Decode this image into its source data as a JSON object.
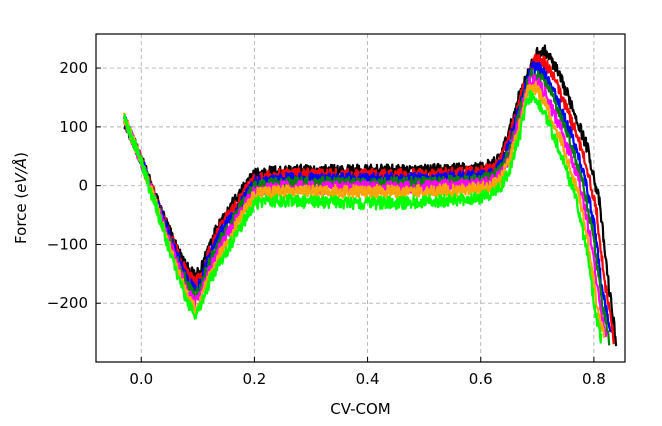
{
  "chart_data": {
    "type": "line",
    "xlabel": "CV-COM",
    "ylabel_prefix": "Force (",
    "ylabel_unit": "eV/Å",
    "ylabel_suffix": ")",
    "xlim": [
      -0.08,
      0.855
    ],
    "ylim": [
      -300,
      258
    ],
    "xticks": [
      0.0,
      0.2,
      0.4,
      0.6,
      0.8
    ],
    "xtick_labels": [
      "0.0",
      "0.2",
      "0.4",
      "0.6",
      "0.8"
    ],
    "yticks": [
      -200,
      -100,
      0,
      100,
      200
    ],
    "ytick_labels": [
      "−200",
      "−100",
      "0",
      "100",
      "200"
    ],
    "grid": true,
    "legend": "none",
    "noise_note": "curves are visibly noisy",
    "series": [
      {
        "color": "#000000",
        "x": [
          -0.03,
          0.0,
          0.03,
          0.06,
          0.08,
          0.095,
          0.105,
          0.12,
          0.14,
          0.17,
          0.2,
          0.25,
          0.3,
          0.4,
          0.5,
          0.6,
          0.62,
          0.635,
          0.65,
          0.67,
          0.7,
          0.715,
          0.73,
          0.76,
          0.79,
          0.81,
          0.825,
          0.84
        ],
        "y": [
          110,
          45,
          -30,
          -100,
          -140,
          -155,
          -145,
          -100,
          -60,
          -20,
          20,
          25,
          25,
          25,
          25,
          30,
          35,
          50,
          90,
          160,
          225,
          228,
          205,
          140,
          60,
          -30,
          -160,
          -270
        ]
      },
      {
        "color": "#ff0000",
        "x": [
          -0.03,
          0.0,
          0.03,
          0.06,
          0.08,
          0.095,
          0.105,
          0.12,
          0.14,
          0.17,
          0.2,
          0.25,
          0.3,
          0.4,
          0.5,
          0.6,
          0.62,
          0.635,
          0.65,
          0.67,
          0.695,
          0.71,
          0.725,
          0.755,
          0.785,
          0.805,
          0.82,
          0.835
        ],
        "y": [
          111,
          44,
          -33,
          -106,
          -149,
          -166,
          -155,
          -111,
          -71,
          -29,
          13,
          18,
          18,
          18,
          18,
          23,
          28,
          42,
          80,
          149,
          212,
          214,
          191,
          126,
          44,
          -47,
          -170,
          -260
        ]
      },
      {
        "color": "#0000ff",
        "x": [
          -0.03,
          0.0,
          0.03,
          0.06,
          0.08,
          0.095,
          0.105,
          0.12,
          0.14,
          0.17,
          0.2,
          0.25,
          0.3,
          0.4,
          0.5,
          0.6,
          0.62,
          0.635,
          0.65,
          0.67,
          0.69,
          0.705,
          0.72,
          0.75,
          0.78,
          0.8,
          0.815,
          0.83
        ],
        "y": [
          112,
          43,
          -36,
          -112,
          -158,
          -177,
          -165,
          -122,
          -82,
          -38,
          6,
          11,
          11,
          11,
          11,
          16,
          21,
          34,
          70,
          138,
          200,
          200,
          178,
          112,
          28,
          -64,
          -180,
          -250
        ]
      },
      {
        "color": "#008000",
        "x": [
          -0.03,
          0.0,
          0.03,
          0.06,
          0.08,
          0.095,
          0.105,
          0.12,
          0.14,
          0.17,
          0.2,
          0.25,
          0.3,
          0.4,
          0.5,
          0.6,
          0.62,
          0.635,
          0.65,
          0.67,
          0.688,
          0.703,
          0.718,
          0.748,
          0.778,
          0.798,
          0.813,
          0.827
        ],
        "y": [
          113,
          42,
          -39,
          -118,
          -167,
          -188,
          -175,
          -133,
          -93,
          -47,
          -1,
          4,
          4,
          4,
          4,
          9,
          14,
          26,
          60,
          127,
          190,
          190,
          168,
          100,
          15,
          -80,
          -190,
          -265
        ]
      },
      {
        "color": "#ff00ff",
        "x": [
          -0.03,
          0.0,
          0.03,
          0.06,
          0.08,
          0.095,
          0.105,
          0.12,
          0.14,
          0.17,
          0.2,
          0.25,
          0.3,
          0.4,
          0.5,
          0.6,
          0.62,
          0.635,
          0.65,
          0.67,
          0.686,
          0.7,
          0.715,
          0.745,
          0.775,
          0.795,
          0.81,
          0.823
        ],
        "y": [
          114,
          41,
          -42,
          -124,
          -176,
          -199,
          -185,
          -144,
          -104,
          -56,
          -8,
          -3,
          -3,
          -3,
          -3,
          2,
          7,
          18,
          50,
          116,
          178,
          178,
          155,
          88,
          2,
          -95,
          -200,
          -260
        ]
      },
      {
        "color": "#ffa500",
        "x": [
          -0.03,
          0.0,
          0.03,
          0.06,
          0.08,
          0.095,
          0.105,
          0.12,
          0.14,
          0.17,
          0.2,
          0.25,
          0.3,
          0.4,
          0.5,
          0.6,
          0.62,
          0.635,
          0.65,
          0.67,
          0.684,
          0.698,
          0.712,
          0.742,
          0.772,
          0.792,
          0.806,
          0.818
        ],
        "y": [
          115,
          40,
          -45,
          -130,
          -185,
          -210,
          -195,
          -155,
          -115,
          -65,
          -15,
          -10,
          -10,
          -10,
          -10,
          -5,
          0,
          10,
          40,
          105,
          166,
          166,
          143,
          76,
          -11,
          -110,
          -210,
          -255
        ]
      },
      {
        "color": "#00ff00",
        "x": [
          -0.03,
          0.0,
          0.03,
          0.06,
          0.08,
          0.095,
          0.105,
          0.12,
          0.14,
          0.17,
          0.2,
          0.25,
          0.3,
          0.4,
          0.5,
          0.6,
          0.62,
          0.635,
          0.65,
          0.67,
          0.682,
          0.695,
          0.71,
          0.74,
          0.77,
          0.79,
          0.803,
          0.813
        ],
        "y": [
          118,
          38,
          -48,
          -140,
          -195,
          -218,
          -205,
          -165,
          -128,
          -80,
          -30,
          -25,
          -28,
          -30,
          -28,
          -20,
          -15,
          -2,
          25,
          90,
          150,
          150,
          127,
          60,
          -28,
          -125,
          -220,
          -260
        ]
      }
    ]
  }
}
